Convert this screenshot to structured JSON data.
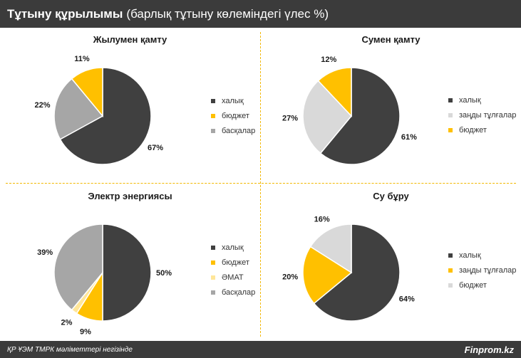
{
  "header": {
    "title_bold": "Тұтыну құрылымы",
    "title_rest": "(барлық тұтыну көлеміндегі үлес %)"
  },
  "footer": {
    "source": "ҚР ҰЭМ ТМРК мәліметтері негізінде",
    "brand": "Finprom.kz"
  },
  "colors": {
    "dark": "#404040",
    "yellow": "#ffc000",
    "gray": "#a6a6a6",
    "light_gray": "#d9d9d9",
    "pale_yellow": "#ffe699",
    "accent": "#f2b800"
  },
  "chart_data": [
    {
      "type": "pie",
      "title": "Жылумен қамту",
      "labels": [
        "халық",
        "бюджет",
        "басқалар"
      ],
      "values": [
        67,
        11,
        22
      ],
      "value_labels": [
        "67%",
        "11%",
        "22%"
      ],
      "colors": [
        "#404040",
        "#ffc000",
        "#a6a6a6"
      ],
      "slice_order": [
        0,
        2,
        1
      ],
      "legend_position": "right"
    },
    {
      "type": "pie",
      "title": "Сумен қамту",
      "labels": [
        "халық",
        "заңды тұлғалар",
        "бюджет"
      ],
      "values": [
        61,
        27,
        12
      ],
      "value_labels": [
        "61%",
        "27%",
        "12%"
      ],
      "colors": [
        "#404040",
        "#d9d9d9",
        "#ffc000"
      ],
      "slice_order": [
        0,
        1,
        2
      ],
      "legend_position": "right"
    },
    {
      "type": "pie",
      "title": "Электр энергиясы",
      "labels": [
        "халық",
        "бюджет",
        "ӘМАТ",
        "басқалар"
      ],
      "values": [
        50,
        9,
        2,
        39
      ],
      "value_labels": [
        "50%",
        "9%",
        "2%",
        "39%"
      ],
      "colors": [
        "#404040",
        "#ffc000",
        "#ffe699",
        "#a6a6a6"
      ],
      "slice_order": [
        0,
        1,
        2,
        3
      ],
      "legend_position": "right"
    },
    {
      "type": "pie",
      "title": "Су бұру",
      "labels": [
        "халық",
        "заңды тұлғалар",
        "бюджет"
      ],
      "values": [
        64,
        20,
        16
      ],
      "value_labels": [
        "64%",
        "20%",
        "16%"
      ],
      "colors": [
        "#404040",
        "#ffc000",
        "#d9d9d9"
      ],
      "slice_order": [
        0,
        1,
        2
      ],
      "legend_position": "right"
    }
  ]
}
